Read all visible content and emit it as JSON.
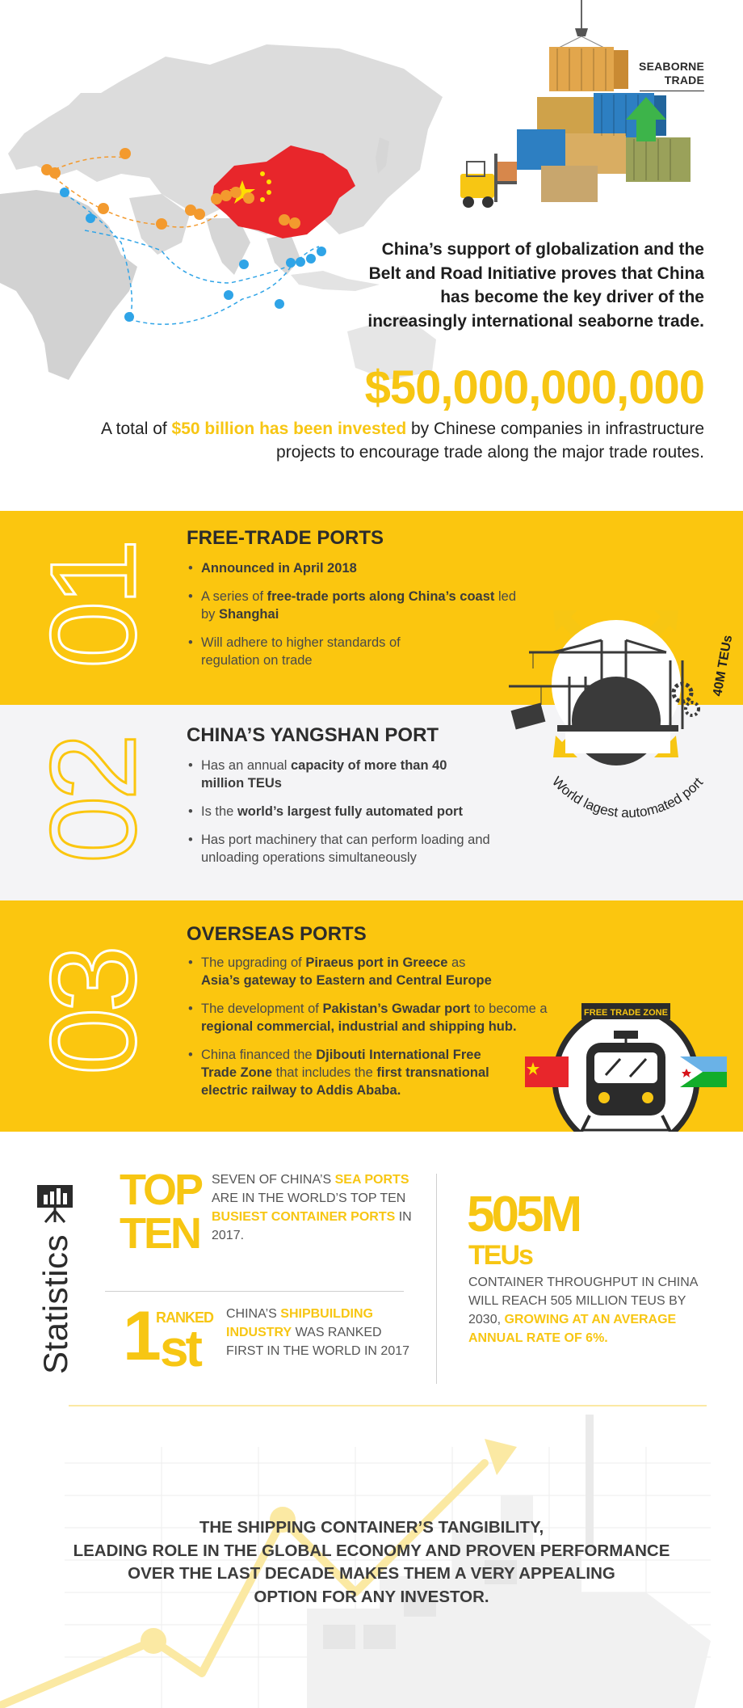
{
  "hero": {
    "corner_label_line1": "SEABORNE",
    "corner_label_line2": "TRADE",
    "statement": "China’s support of globalization and the Belt and Road Initiative proves that China has become the key driver of the increasingly international seaborne trade.",
    "amount": "$50,000,000,000",
    "note_prefix": "A total of ",
    "note_highlight": "$50 billion has been invested",
    "note_suffix": " by Chinese companies in infrastructure projects to encourage trade along the major trade routes.",
    "colors": {
      "accent": "#f7c613",
      "map": "#dcdcdc",
      "china": "#e8262b",
      "route_orange": "#f39a2e",
      "route_blue": "#2fa4e7"
    }
  },
  "sections": [
    {
      "number": "01",
      "title": "FREE-TRADE PORTS",
      "bullets": [
        {
          "bold": "Announced in April 2018",
          "pre": "",
          "post": ""
        },
        {
          "pre": "A series of ",
          "bold": "free-trade ports along China’s coast",
          "post": " led by ",
          "bold2": "Shanghai"
        },
        {
          "pre": "Will adhere to higher standards of regulation on trade",
          "bold": "",
          "post": ""
        }
      ]
    },
    {
      "number": "02",
      "title": "CHINA’S YANGSHAN PORT",
      "bullets": [
        {
          "pre": "Has an annual ",
          "bold": "capacity of more than 40 million TEUs",
          "post": ""
        },
        {
          "pre": "Is the ",
          "bold": "world’s largest fully automated port",
          "post": ""
        },
        {
          "pre": "Has port machinery that can perform loading and unloading operations simultaneously",
          "bold": "",
          "post": ""
        }
      ]
    },
    {
      "number": "03",
      "title": "OVERSEAS PORTS",
      "bullets": [
        {
          "pre": "The upgrading of ",
          "bold": "Piraeus port in Greece",
          "post": " as ",
          "bold2": "Asia’s gateway to Eastern and Central Europe"
        },
        {
          "pre": "The development of ",
          "bold": "Pakistan’s Gwadar port",
          "post": " to become a ",
          "bold2": "regional commercial, industrial and shipping hub."
        },
        {
          "pre": "China financed the ",
          "bold": "Djibouti International Free Trade Zone",
          "post": " that includes the ",
          "bold2": "first transnational electric railway to Addis Ababa."
        }
      ]
    }
  ],
  "port_badge": {
    "arc_text": "World lagest automated port",
    "side_text": "40M TEUs"
  },
  "trade_zone": {
    "label": "FREE TRADE ZONE"
  },
  "statistics": {
    "label": "Statistics",
    "top_ten_big_line1": "TOP",
    "top_ten_big_line2": "TEN",
    "top_ten_text": [
      {
        "t": "SEVEN OF CHINA’S ",
        "hl": false
      },
      {
        "t": "SEA PORTS",
        "hl": true
      },
      {
        "t": " ARE IN THE WORLD’S TOP TEN ",
        "hl": false
      },
      {
        "t": "BUSIEST CONTAINER PORTS",
        "hl": true
      },
      {
        "t": " IN 2017.",
        "hl": false
      }
    ],
    "ranked_big": "1",
    "ranked_small": "RANKED",
    "ranked_suffix": "st",
    "ranked_text": [
      {
        "t": "CHINA’S ",
        "hl": false
      },
      {
        "t": "SHIPBUILDING INDUSTRY",
        "hl": true
      },
      {
        "t": " WAS RANKED FIRST IN THE WORLD IN 2017",
        "hl": false
      }
    ],
    "teu_big": "505M",
    "teu_unit": "TEUs",
    "teu_text": [
      {
        "t": "CONTAINER THROUGHPUT IN CHINA WILL REACH 505 MILLION TEUS BY 2030, ",
        "hl": false
      },
      {
        "t": "GROWING AT AN AVERAGE ANNUAL RATE OF 6%.",
        "hl": true
      }
    ]
  },
  "footer": {
    "line1": "THE SHIPPING CONTAINER’S TANGIBILITY,",
    "line2": "LEADING ROLE IN THE GLOBAL ECONOMY AND PROVEN PERFORMANCE",
    "line3": "OVER THE LAST DECADE MAKES THEM A VERY APPEALING",
    "line4": "OPTION FOR ANY INVESTOR."
  }
}
